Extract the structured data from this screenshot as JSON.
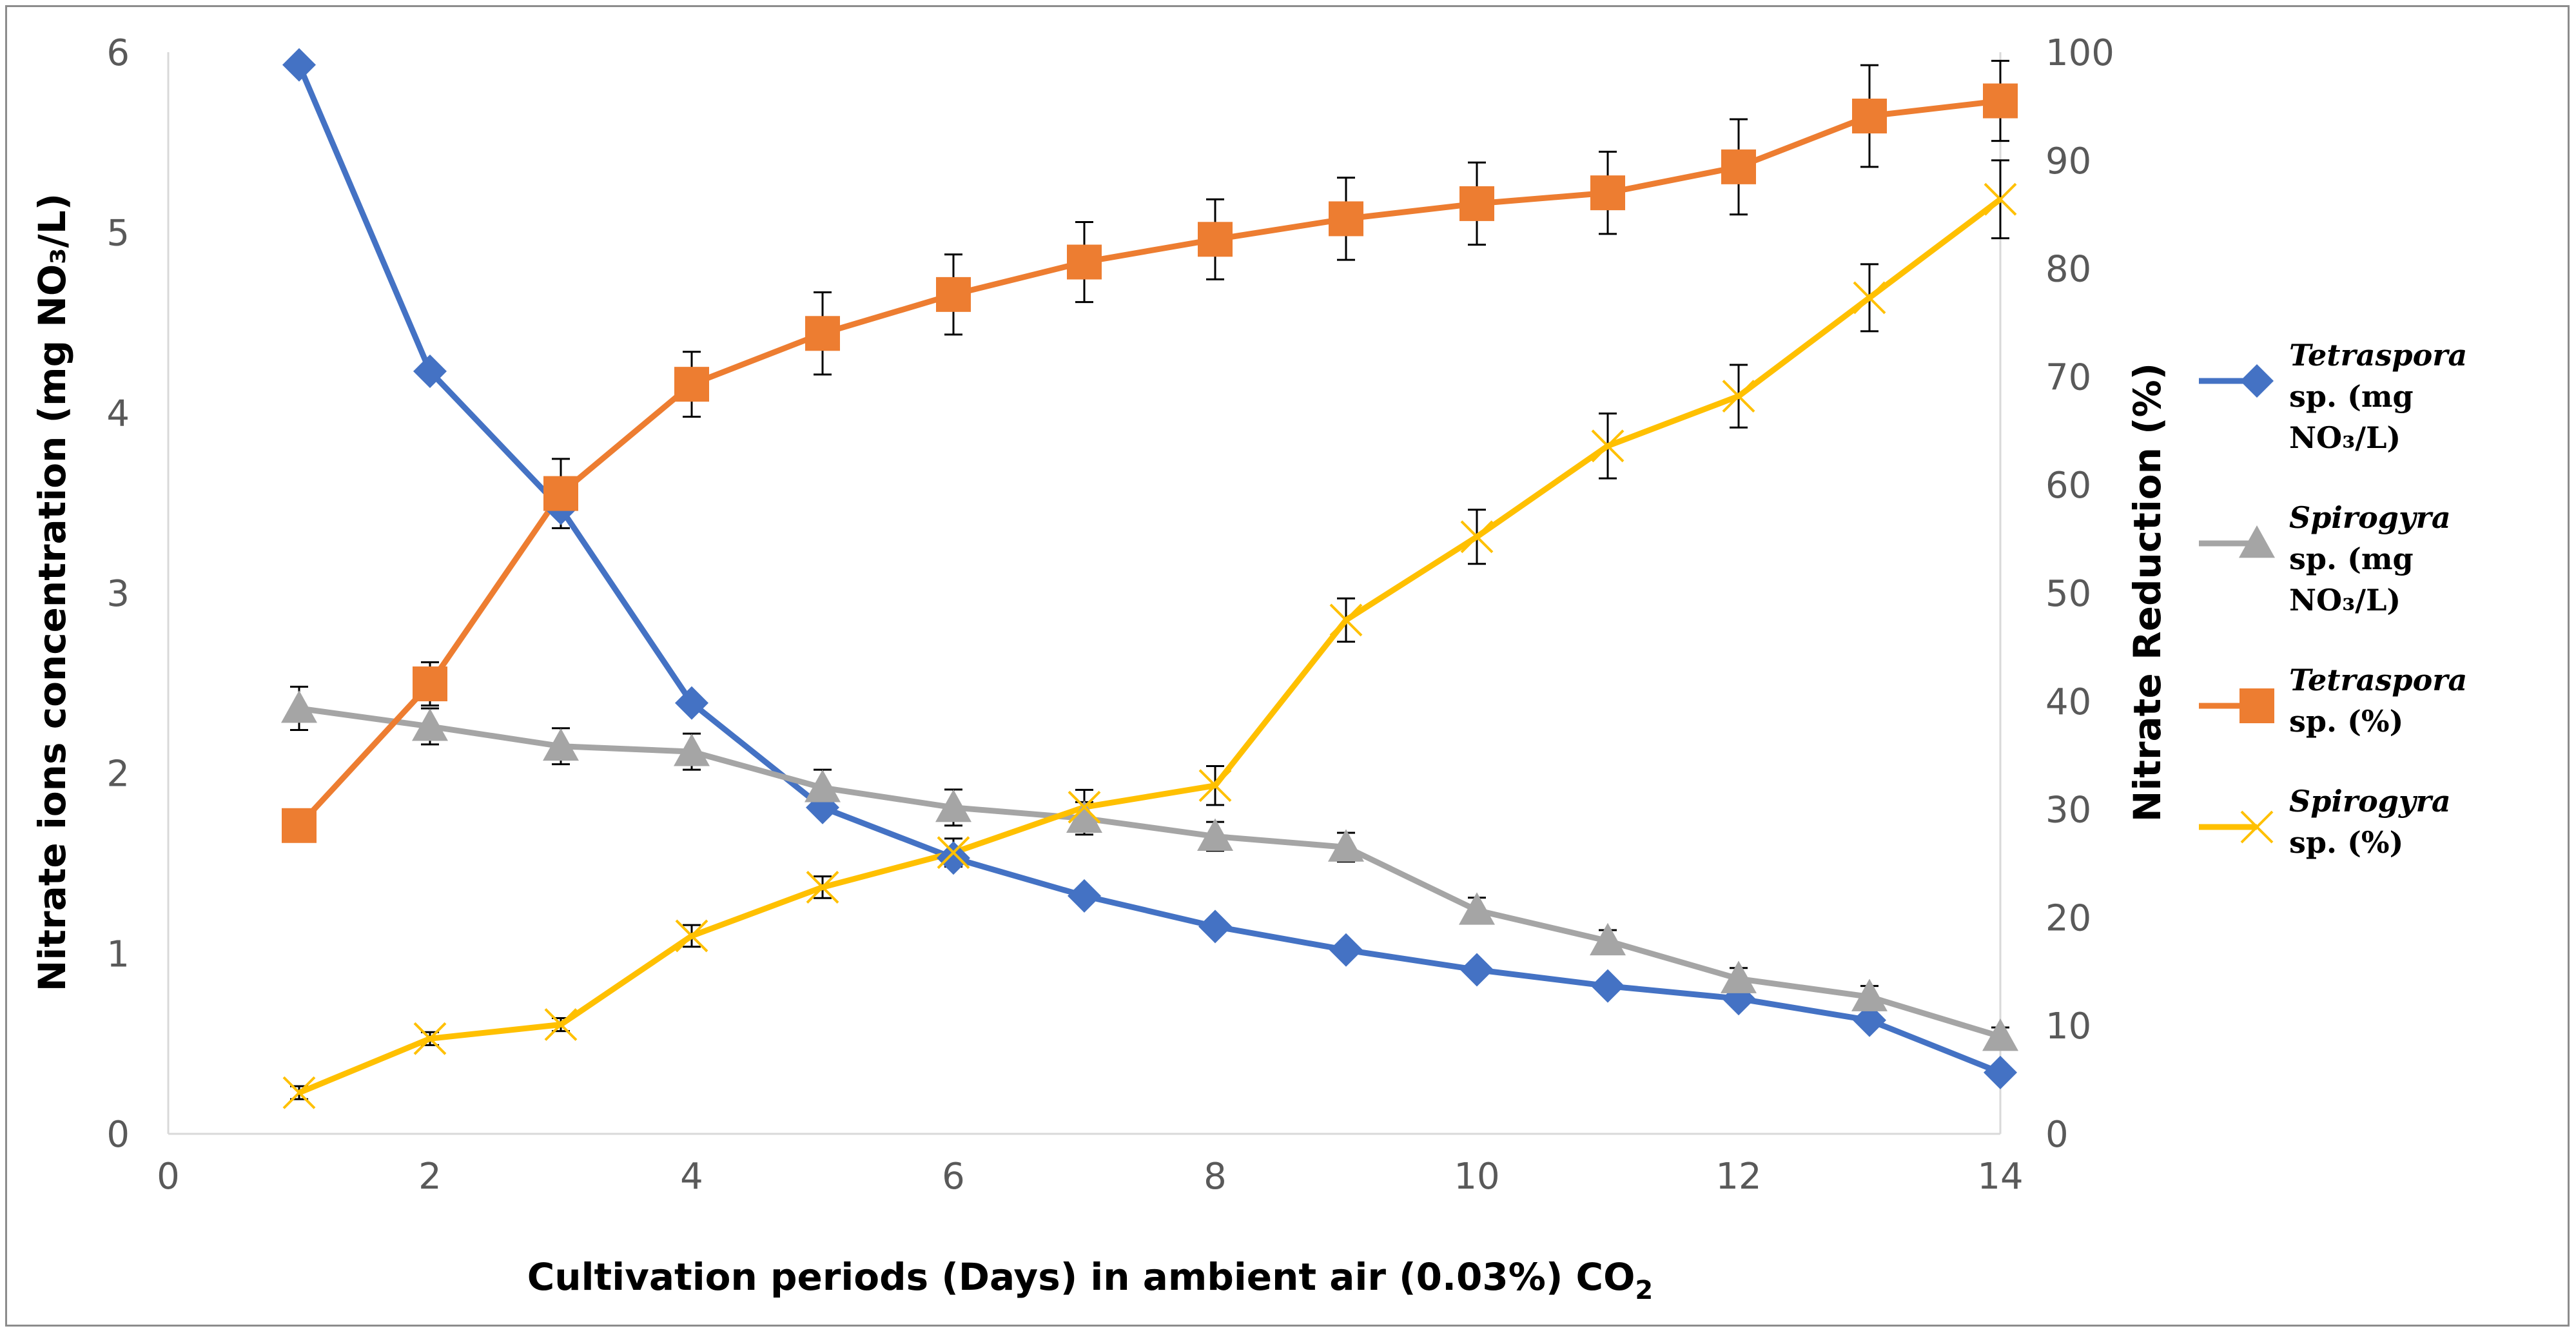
{
  "chart_data": {
    "type": "line",
    "xlabel": "Cultivation periods (Days) in ambient air (0.03%) CO",
    "xlabel_sub": "2",
    "ylabel_left": "Nitrate ions concentration (mg NO₃/L)",
    "ylabel_right": "Nitrate Reduction (%)",
    "xlim": [
      0,
      14
    ],
    "ylim_left": [
      0,
      6
    ],
    "ylim_right": [
      0,
      100
    ],
    "x_ticks": [
      "0",
      "2",
      "4",
      "6",
      "8",
      "10",
      "12",
      "14"
    ],
    "y_left_ticks": [
      "0",
      "1",
      "2",
      "3",
      "4",
      "5",
      "6"
    ],
    "y_right_ticks": [
      "0",
      "10",
      "20",
      "30",
      "40",
      "50",
      "60",
      "70",
      "80",
      "90",
      "100"
    ],
    "grid": false,
    "legend_position": "right",
    "x": [
      1,
      2,
      3,
      4,
      5,
      6,
      7,
      8,
      9,
      10,
      11,
      12,
      13,
      14
    ],
    "series": [
      {
        "key": "tetra_conc",
        "axis": "left",
        "marker": "diamond",
        "color": "#4472c4",
        "legend": {
          "italic": "Tetraspora",
          "lines": [
            "sp. (mg",
            "NO₃/L)"
          ]
        },
        "values": [
          5.93,
          4.23,
          3.47,
          2.39,
          1.81,
          1.53,
          1.32,
          1.15,
          1.02,
          0.91,
          0.82,
          0.75,
          0.63,
          0.34
        ],
        "errors": []
      },
      {
        "key": "spiro_conc",
        "axis": "left",
        "marker": "triangle",
        "color": "#a5a5a5",
        "legend": {
          "italic": "Spirogyra",
          "lines": [
            "sp. (mg",
            "NO₃/L)"
          ]
        },
        "values": [
          2.36,
          2.26,
          2.15,
          2.12,
          1.92,
          1.81,
          1.75,
          1.65,
          1.59,
          1.24,
          1.07,
          0.86,
          0.76,
          0.54
        ],
        "errors": [
          0.12,
          0.1,
          0.1,
          0.1,
          0.1,
          0.1,
          0.09,
          0.08,
          0.08,
          0.07,
          0.06,
          0.06,
          0.06,
          0.05
        ]
      },
      {
        "key": "tetra_pct",
        "axis": "right",
        "marker": "square",
        "color": "#ed7d31",
        "legend": {
          "italic": "Tetraspora",
          "lines": [
            "sp. (%)"
          ]
        },
        "values": [
          28.5,
          41.6,
          59.2,
          69.3,
          74,
          77.6,
          80.6,
          82.7,
          84.6,
          86,
          87,
          89.4,
          94.1,
          95.5
        ],
        "errors": [
          0,
          2,
          3.2,
          3,
          3.8,
          3.7,
          3.7,
          3.7,
          3.8,
          3.8,
          3.8,
          4.4,
          4.7,
          3.7
        ]
      },
      {
        "key": "spiro_pct",
        "axis": "right",
        "marker": "x",
        "color": "#ffc000",
        "legend": {
          "italic": "Spirogyra",
          "lines": [
            "sp. (%)"
          ]
        },
        "values": [
          3.8,
          8.8,
          10.1,
          18.3,
          22.8,
          26,
          30.2,
          32.2,
          47.5,
          55.2,
          63.6,
          68.2,
          77.3,
          86.4
        ],
        "errors": [
          0.6,
          0.6,
          0.6,
          1,
          1,
          1.3,
          1.6,
          1.8,
          2,
          2.5,
          3,
          2.9,
          3.1,
          3.6
        ]
      }
    ]
  }
}
